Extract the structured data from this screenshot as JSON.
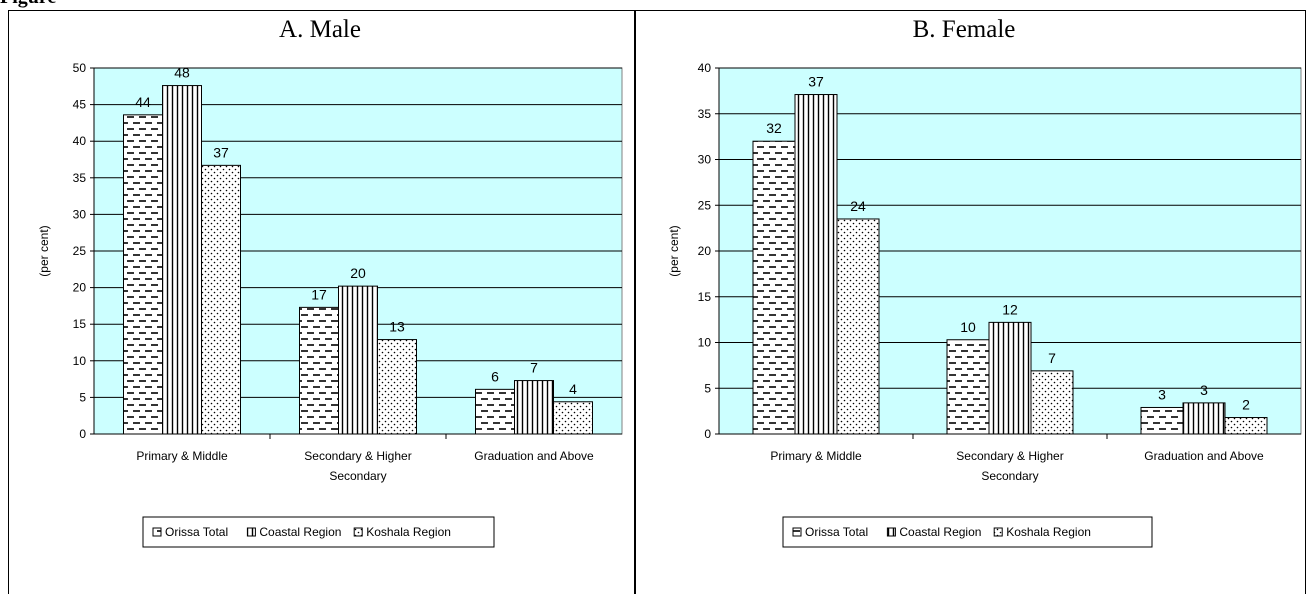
{
  "caption": "Figure",
  "chart_data": [
    {
      "type": "bar",
      "title": "A. Male",
      "ylabel": "(per cent)",
      "ylim": [
        0,
        50
      ],
      "yticks": [
        0,
        5,
        10,
        15,
        20,
        25,
        30,
        35,
        40,
        45,
        50
      ],
      "categories": [
        [
          "Primary & Middle"
        ],
        [
          "Secondary & Higher",
          "Secondary"
        ],
        [
          "Graduation and Above"
        ]
      ],
      "series": [
        {
          "name": "Orissa Total",
          "values": [
            43.6,
            17.3,
            6.1
          ],
          "labels": [
            "44",
            "17",
            "6"
          ],
          "pattern": "dash"
        },
        {
          "name": "Coastal Region",
          "values": [
            47.6,
            20.2,
            7.3
          ],
          "labels": [
            "48",
            "20",
            "7"
          ],
          "pattern": "vline"
        },
        {
          "name": "Koshala Region",
          "values": [
            36.7,
            12.9,
            4.4
          ],
          "labels": [
            "37",
            "13",
            "4"
          ],
          "pattern": "dot"
        }
      ],
      "grid": true,
      "legend": "bottom",
      "plot_color": "#ccffff"
    },
    {
      "type": "bar",
      "title": "B. Female",
      "ylabel": "(per cent)",
      "ylim": [
        0,
        40
      ],
      "yticks": [
        0,
        5,
        10,
        15,
        20,
        25,
        30,
        35,
        40
      ],
      "categories": [
        [
          "Primary & Middle"
        ],
        [
          "Secondary & Higher",
          "Secondary"
        ],
        [
          "Graduation and Above"
        ]
      ],
      "series": [
        {
          "name": "Orissa Total",
          "values": [
            32.0,
            10.3,
            2.9
          ],
          "labels": [
            "32",
            "10",
            "3"
          ],
          "pattern": "dash"
        },
        {
          "name": "Coastal Region",
          "values": [
            37.1,
            12.2,
            3.4
          ],
          "labels": [
            "37",
            "12",
            "3"
          ],
          "pattern": "vline"
        },
        {
          "name": "Koshala Region",
          "values": [
            23.5,
            6.9,
            1.8
          ],
          "labels": [
            "24",
            "7",
            "2"
          ],
          "pattern": "dot"
        }
      ],
      "grid": true,
      "legend": "bottom",
      "plot_color": "#ccffff"
    }
  ]
}
